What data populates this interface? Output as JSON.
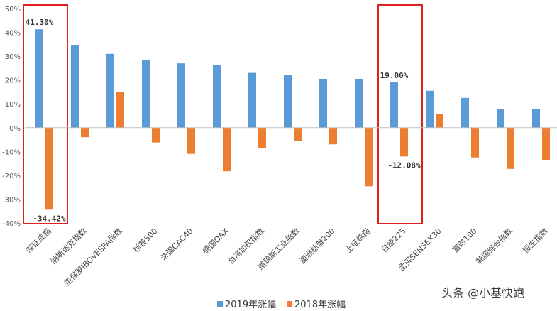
{
  "chart_data": {
    "type": "bar",
    "categories": [
      "深证成指",
      "纳斯达克指数",
      "圣保罗IBOVESPA指数",
      "标普500",
      "法国CAC40",
      "德国DAX",
      "台湾加权指数",
      "道琼斯工业指数",
      "澳洲标普200",
      "上证综指",
      "日经225",
      "孟买SENSEX30",
      "富时100",
      "韩国综合指数",
      "恒生指数"
    ],
    "series": [
      {
        "name": "2019年涨幅",
        "color": "#5B9BD5",
        "values": [
          41.3,
          34.5,
          31.0,
          28.5,
          27.0,
          26.2,
          23.0,
          22.0,
          20.5,
          20.5,
          19.0,
          15.5,
          12.5,
          7.8,
          7.8
        ]
      },
      {
        "name": "2018年涨幅",
        "color": "#ED7D31",
        "values": [
          -34.42,
          -4.0,
          15.0,
          -6.2,
          -11.0,
          -18.3,
          -8.6,
          -5.6,
          -7.0,
          -24.6,
          -12.08,
          5.8,
          -12.5,
          -17.3,
          -13.6
        ]
      }
    ],
    "ylim": [
      -40,
      50
    ],
    "yticks": [
      "50%",
      "40%",
      "30%",
      "20%",
      "10%",
      "0%",
      "-10%",
      "-20%",
      "-30%",
      "-40%"
    ],
    "data_labels": [
      {
        "text": "41.30%",
        "category": 0,
        "series": 0
      },
      {
        "text": "-34.42%",
        "category": 0,
        "series": 1
      },
      {
        "text": "19.00%",
        "category": 10,
        "series": 0
      },
      {
        "text": "-12.08%",
        "category": 10,
        "series": 1
      }
    ],
    "highlight_boxes": [
      0,
      10
    ],
    "highlight_color": "#E02020",
    "grid": false,
    "legend_position": "bottom"
  },
  "watermark": "头条 @小基快跑"
}
